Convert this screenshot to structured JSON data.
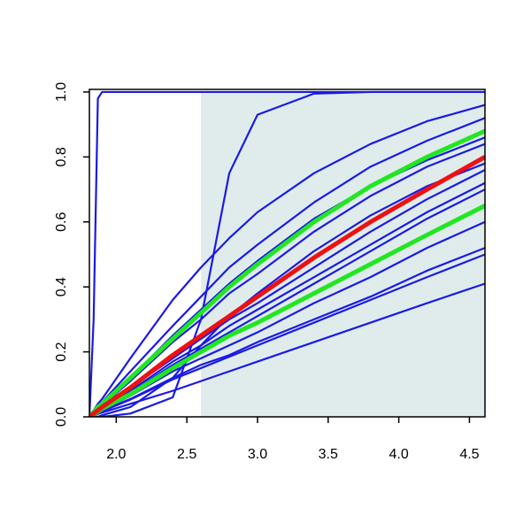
{
  "chart_data": {
    "type": "line",
    "x": [
      1.81,
      1.84,
      1.87,
      1.9,
      2.1,
      2.4,
      2.6,
      2.8,
      3.0,
      3.4,
      3.8,
      4.2,
      4.61
    ],
    "xlim": [
      1.81,
      4.61
    ],
    "ylim": [
      0,
      1.008
    ],
    "xticks": [
      {
        "value": 2,
        "label": "2.0"
      },
      2.5,
      {
        "value": 3,
        "label": "3.0"
      },
      3.5,
      {
        "value": 4,
        "label": "4.0"
      },
      4.5
    ],
    "yticks": [
      {
        "value": 0,
        "label": "0.0"
      },
      0.2,
      0.4,
      0.6,
      0.8,
      {
        "value": 1,
        "label": "1.0"
      }
    ],
    "shade": {
      "x": [
        2.6,
        4.61
      ],
      "y": [
        0,
        1
      ],
      "color": "#e0ecec"
    },
    "series": [
      {
        "color": "#1a1ae6",
        "values": [
          0,
          0.3,
          0.98,
          1,
          1,
          1,
          1,
          1,
          1,
          1,
          1,
          1,
          1
        ]
      },
      {
        "color": "#1a1ae6",
        "values": [
          0,
          0,
          0,
          0,
          0.01,
          0.06,
          0.3,
          0.75,
          0.93,
          0.995,
          1,
          1,
          1
        ]
      },
      {
        "color": "#1a1ae6",
        "values": [
          0,
          0,
          0,
          0.005,
          0.03,
          0.12,
          0.22,
          0.31,
          0.38,
          0.51,
          0.62,
          0.71,
          0.78
        ]
      },
      {
        "color": "#1a1ae6",
        "values": [
          0,
          0.02,
          0.04,
          0.055,
          0.18,
          0.36,
          0.46,
          0.55,
          0.63,
          0.75,
          0.84,
          0.91,
          0.96
        ]
      },
      {
        "color": "#1a1ae6",
        "values": [
          0,
          0.015,
          0.03,
          0.045,
          0.14,
          0.28,
          0.37,
          0.46,
          0.53,
          0.66,
          0.77,
          0.85,
          0.92
        ]
      },
      {
        "color": "#1a1ae6",
        "values": [
          0,
          0.012,
          0.025,
          0.04,
          0.12,
          0.25,
          0.33,
          0.41,
          0.48,
          0.61,
          0.71,
          0.79,
          0.86
        ]
      },
      {
        "color": "#1a1ae6",
        "values": [
          0,
          0.012,
          0.024,
          0.036,
          0.11,
          0.23,
          0.3,
          0.38,
          0.44,
          0.57,
          0.68,
          0.77,
          0.84
        ]
      },
      {
        "color": "#1a1ae6",
        "values": [
          0,
          0.01,
          0.02,
          0.03,
          0.09,
          0.18,
          0.24,
          0.3,
          0.35,
          0.46,
          0.57,
          0.67,
          0.76
        ]
      },
      {
        "color": "#1a1ae6",
        "values": [
          0,
          0.009,
          0.018,
          0.028,
          0.08,
          0.17,
          0.22,
          0.28,
          0.33,
          0.43,
          0.53,
          0.63,
          0.72
        ]
      },
      {
        "color": "#1a1ae6",
        "values": [
          0,
          0.008,
          0.016,
          0.025,
          0.075,
          0.16,
          0.21,
          0.26,
          0.31,
          0.41,
          0.51,
          0.61,
          0.7
        ]
      },
      {
        "color": "#1a1ae6",
        "values": [
          0,
          0.007,
          0.014,
          0.02,
          0.065,
          0.14,
          0.18,
          0.22,
          0.26,
          0.35,
          0.43,
          0.52,
          0.6
        ]
      },
      {
        "color": "#1a1ae6",
        "values": [
          0,
          0.006,
          0.012,
          0.018,
          0.055,
          0.12,
          0.16,
          0.19,
          0.23,
          0.3,
          0.37,
          0.45,
          0.52
        ]
      },
      {
        "color": "#1a1ae6",
        "values": [
          0,
          0.006,
          0.012,
          0.017,
          0.053,
          0.115,
          0.15,
          0.185,
          0.22,
          0.29,
          0.36,
          0.43,
          0.5
        ]
      },
      {
        "color": "#1a1ae6",
        "values": [
          0,
          0.004,
          0.009,
          0.013,
          0.04,
          0.08,
          0.11,
          0.14,
          0.17,
          0.23,
          0.29,
          0.35,
          0.41
        ]
      },
      {
        "color": "#22e622",
        "emphasis": true,
        "values": [
          0,
          0.015,
          0.03,
          0.04,
          0.12,
          0.24,
          0.32,
          0.4,
          0.47,
          0.6,
          0.71,
          0.8,
          0.88
        ]
      },
      {
        "color": "#22e622",
        "emphasis": true,
        "values": [
          0,
          0.008,
          0.016,
          0.025,
          0.07,
          0.15,
          0.2,
          0.25,
          0.29,
          0.38,
          0.47,
          0.56,
          0.65
        ]
      },
      {
        "color": "#ee1111",
        "emphasis": true,
        "values": [
          0,
          0.01,
          0.02,
          0.03,
          0.09,
          0.19,
          0.25,
          0.31,
          0.37,
          0.49,
          0.6,
          0.7,
          0.8
        ]
      }
    ]
  }
}
